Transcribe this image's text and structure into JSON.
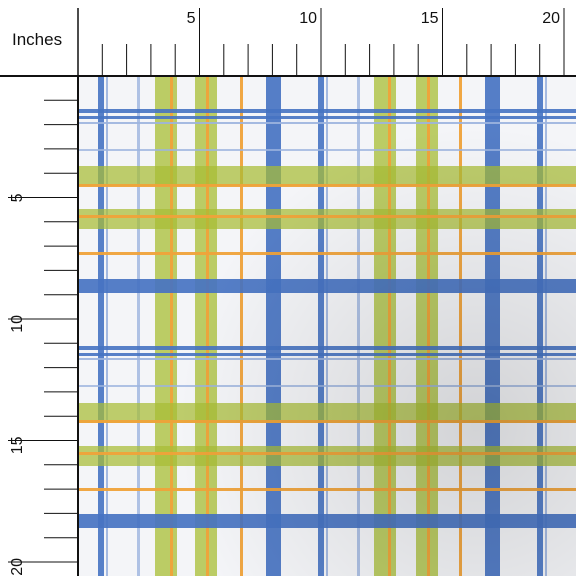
{
  "ruler": {
    "units_label": "Inches",
    "top_numbers": [
      "5",
      "10",
      "15",
      "20"
    ],
    "left_numbers": [
      "5",
      "10",
      "15",
      "20"
    ]
  },
  "colors": {
    "background": "#f4f5f8",
    "blue": "#4673c2",
    "light_blue": "#9cb4de",
    "green": "#a8bd34",
    "orange": "#efa23a",
    "ruler_line": "#111111"
  }
}
